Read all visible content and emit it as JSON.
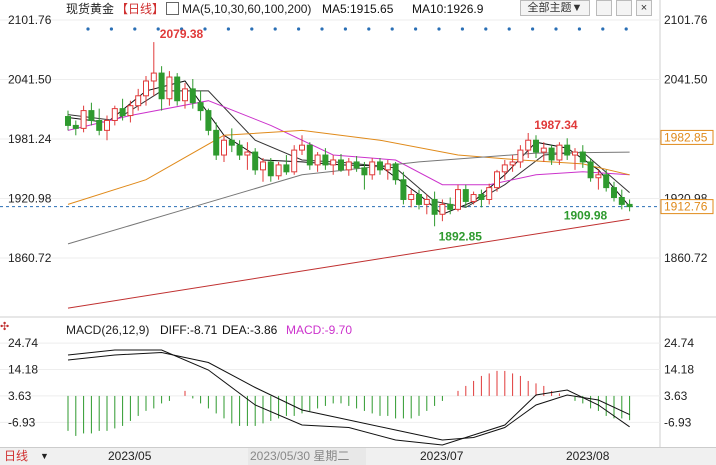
{
  "header": {
    "title": "现货黄金",
    "period": "【日线】",
    "ma_params": "MA(5,10,30,60,100,200)",
    "ma5": "MA5:1915.65",
    "ma10": "MA10:1926.9",
    "menu": "全部主题▼"
  },
  "macd_header": {
    "params": "MACD(26,12,9)",
    "diff": "DIFF:-8.71",
    "dea": "DEA:-3.86",
    "macd": "MACD:-9.70"
  },
  "bottom": {
    "mode_label": "日线",
    "cursor_date": "2023/05/30 星期二",
    "months": [
      "2023/05",
      "2023/07",
      "2023/08"
    ]
  },
  "colors": {
    "up": "#e03a3a",
    "down": "#2e9a2e",
    "ma5": "#111111",
    "ma10": "#333333",
    "ma30": "#cc33cc",
    "ma60": "#e08a1a",
    "ma100": "#777777",
    "ma200": "#c03030",
    "price_line": "#2a6fb5"
  },
  "chart_data": {
    "type": "candlestick",
    "main": {
      "y_ticks": [
        "2101.76",
        "2041.50",
        "1981.24",
        "1920.98",
        "1860.72"
      ],
      "y_range": [
        1830,
        2101.76
      ],
      "right_labels": [
        "1982.85",
        "1912.76"
      ],
      "annotations": [
        "2079.38",
        "1987.34",
        "1892.85",
        "1909.98"
      ]
    },
    "macd": {
      "y_ticks": [
        "24.74",
        "14.18",
        "3.63",
        "-6.93"
      ],
      "y_range": [
        -14,
        26
      ]
    },
    "x_labels": [
      "2023/05",
      "2023/07",
      "2023/08"
    ],
    "ohlc": [
      [
        2004,
        2010,
        1990,
        1995
      ],
      [
        1995,
        2000,
        1985,
        1992
      ],
      [
        1992,
        2015,
        1988,
        2010
      ],
      [
        2010,
        2018,
        1995,
        2000
      ],
      [
        2000,
        2012,
        1985,
        1990
      ],
      [
        1990,
        2005,
        1980,
        2000
      ],
      [
        2000,
        2015,
        1995,
        2012
      ],
      [
        2012,
        2022,
        2000,
        2005
      ],
      [
        2005,
        2020,
        1998,
        2015
      ],
      [
        2015,
        2032,
        2010,
        2025
      ],
      [
        2025,
        2045,
        2015,
        2040
      ],
      [
        2040,
        2079.38,
        2025,
        2048
      ],
      [
        2048,
        2055,
        2010,
        2022
      ],
      [
        2022,
        2050,
        2015,
        2044
      ],
      [
        2044,
        2048,
        2015,
        2020
      ],
      [
        2020,
        2038,
        2012,
        2032
      ],
      [
        2032,
        2042,
        2012,
        2018
      ],
      [
        2018,
        2030,
        2000,
        2010
      ],
      [
        2010,
        2012,
        1985,
        1990
      ],
      [
        1990,
        1998,
        1960,
        1965
      ],
      [
        1965,
        1985,
        1958,
        1980
      ],
      [
        1980,
        1992,
        1968,
        1975
      ],
      [
        1975,
        1980,
        1960,
        1965
      ],
      [
        1965,
        1978,
        1950,
        1968
      ],
      [
        1968,
        1972,
        1945,
        1950
      ],
      [
        1950,
        1962,
        1938,
        1958
      ],
      [
        1958,
        1962,
        1938,
        1944
      ],
      [
        1944,
        1958,
        1940,
        1955
      ],
      [
        1955,
        1965,
        1945,
        1948
      ],
      [
        1948,
        1975,
        1945,
        1970
      ],
      [
        1970,
        1985,
        1965,
        1975
      ],
      [
        1975,
        1978,
        1950,
        1955
      ],
      [
        1955,
        1968,
        1948,
        1965
      ],
      [
        1965,
        1972,
        1950,
        1955
      ],
      [
        1955,
        1965,
        1945,
        1960
      ],
      [
        1960,
        1966,
        1948,
        1950
      ],
      [
        1950,
        1962,
        1944,
        1958
      ],
      [
        1958,
        1964,
        1948,
        1952
      ],
      [
        1952,
        1958,
        1930,
        1945
      ],
      [
        1945,
        1962,
        1940,
        1958
      ],
      [
        1958,
        1962,
        1945,
        1950
      ],
      [
        1950,
        1960,
        1940,
        1956
      ],
      [
        1956,
        1958,
        1935,
        1940
      ],
      [
        1940,
        1948,
        1915,
        1920
      ],
      [
        1920,
        1930,
        1912,
        1925
      ],
      [
        1925,
        1930,
        1910,
        1915
      ],
      [
        1915,
        1925,
        1905,
        1920
      ],
      [
        1920,
        1928,
        1892.85,
        1905
      ],
      [
        1905,
        1920,
        1898,
        1915
      ],
      [
        1915,
        1922,
        1905,
        1910
      ],
      [
        1910,
        1935,
        1908,
        1930
      ],
      [
        1930,
        1935,
        1912,
        1918
      ],
      [
        1918,
        1928,
        1915,
        1925
      ],
      [
        1925,
        1930,
        1912,
        1920
      ],
      [
        1920,
        1936,
        1915,
        1932
      ],
      [
        1932,
        1950,
        1928,
        1948
      ],
      [
        1948,
        1960,
        1940,
        1955
      ],
      [
        1955,
        1965,
        1948,
        1958
      ],
      [
        1958,
        1975,
        1952,
        1970
      ],
      [
        1970,
        1987.34,
        1962,
        1980
      ],
      [
        1980,
        1985,
        1962,
        1968
      ],
      [
        1968,
        1978,
        1958,
        1972
      ],
      [
        1972,
        1975,
        1955,
        1960
      ],
      [
        1960,
        1978,
        1955,
        1975
      ],
      [
        1975,
        1982,
        1960,
        1965
      ],
      [
        1965,
        1972,
        1950,
        1968
      ],
      [
        1968,
        1975,
        1952,
        1958
      ],
      [
        1958,
        1962,
        1938,
        1942
      ],
      [
        1942,
        1950,
        1930,
        1945
      ],
      [
        1945,
        1950,
        1928,
        1932
      ],
      [
        1932,
        1938,
        1918,
        1922
      ],
      [
        1922,
        1930,
        1909.98,
        1915
      ],
      [
        1915,
        1920,
        1908,
        1912.76
      ]
    ],
    "ma_series": {
      "MA5": [
        [
          0,
          2003
        ],
        [
          5,
          1998
        ],
        [
          10,
          2030
        ],
        [
          15,
          2040
        ],
        [
          20,
          1985
        ],
        [
          25,
          1960
        ],
        [
          30,
          1958
        ],
        [
          35,
          1955
        ],
        [
          40,
          1954
        ],
        [
          45,
          1925
        ],
        [
          48,
          1905
        ],
        [
          52,
          1918
        ],
        [
          56,
          1945
        ],
        [
          60,
          1978
        ],
        [
          64,
          1972
        ],
        [
          68,
          1950
        ],
        [
          72,
          1913
        ]
      ],
      "MA10": [
        [
          0,
          2006
        ],
        [
          6,
          2000
        ],
        [
          12,
          2030
        ],
        [
          18,
          2030
        ],
        [
          24,
          1980
        ],
        [
          30,
          1960
        ],
        [
          36,
          1957
        ],
        [
          42,
          1952
        ],
        [
          47,
          1918
        ],
        [
          51,
          1912
        ],
        [
          56,
          1935
        ],
        [
          61,
          1965
        ],
        [
          66,
          1968
        ],
        [
          72,
          1927
        ]
      ],
      "MA30": [
        [
          0,
          1990
        ],
        [
          8,
          2005
        ],
        [
          18,
          2020
        ],
        [
          26,
          1995
        ],
        [
          34,
          1965
        ],
        [
          42,
          1960
        ],
        [
          48,
          1935
        ],
        [
          54,
          1935
        ],
        [
          60,
          1945
        ],
        [
          66,
          1948
        ],
        [
          72,
          1945
        ]
      ],
      "MA60": [
        [
          0,
          1915
        ],
        [
          10,
          1940
        ],
        [
          20,
          1985
        ],
        [
          30,
          1990
        ],
        [
          40,
          1980
        ],
        [
          50,
          1965
        ],
        [
          58,
          1960
        ],
        [
          66,
          1956
        ],
        [
          72,
          1945
        ]
      ],
      "MA100": [
        [
          0,
          1875
        ],
        [
          15,
          1910
        ],
        [
          30,
          1945
        ],
        [
          45,
          1958
        ],
        [
          60,
          1967
        ],
        [
          72,
          1968
        ]
      ],
      "MA200": [
        [
          0,
          1810
        ],
        [
          36,
          1855
        ],
        [
          72,
          1900
        ]
      ]
    },
    "macd_series": {
      "DIFF": [
        [
          0,
          20
        ],
        [
          6,
          22
        ],
        [
          12,
          22
        ],
        [
          18,
          14
        ],
        [
          24,
          0
        ],
        [
          30,
          -8
        ],
        [
          36,
          -9
        ],
        [
          42,
          -14
        ],
        [
          48,
          -16
        ],
        [
          52,
          -12
        ],
        [
          56,
          -8
        ],
        [
          60,
          4
        ],
        [
          64,
          6
        ],
        [
          68,
          0
        ],
        [
          72,
          -8.71
        ]
      ],
      "DEA": [
        [
          0,
          18
        ],
        [
          6,
          20
        ],
        [
          12,
          21
        ],
        [
          18,
          17
        ],
        [
          24,
          7
        ],
        [
          30,
          -2
        ],
        [
          36,
          -6
        ],
        [
          42,
          -10
        ],
        [
          48,
          -14
        ],
        [
          52,
          -13
        ],
        [
          56,
          -9
        ],
        [
          60,
          0
        ],
        [
          64,
          4
        ],
        [
          68,
          2
        ],
        [
          72,
          -3.86
        ]
      ],
      "MACD": [
        -14,
        -16,
        -15,
        -15,
        -14,
        -14,
        -13,
        -12,
        -10,
        -8,
        -6,
        -5,
        -3,
        -2,
        0,
        2,
        -1,
        -3,
        -5,
        -7,
        -9,
        -11,
        -12,
        -12,
        -12,
        -11,
        -10,
        -9,
        -8,
        -8,
        -7,
        -6,
        -5,
        -4,
        -3,
        -3,
        -4,
        -5,
        -6,
        -7,
        -8,
        -8,
        -9,
        -9,
        -9,
        -8,
        -6,
        -4,
        -2,
        0,
        2,
        4,
        6,
        8,
        9,
        10,
        10,
        9,
        8,
        6,
        5,
        4,
        2,
        1,
        0,
        -2,
        -3,
        -5,
        -6,
        -8,
        -9,
        -9,
        -9.7
      ]
    }
  }
}
